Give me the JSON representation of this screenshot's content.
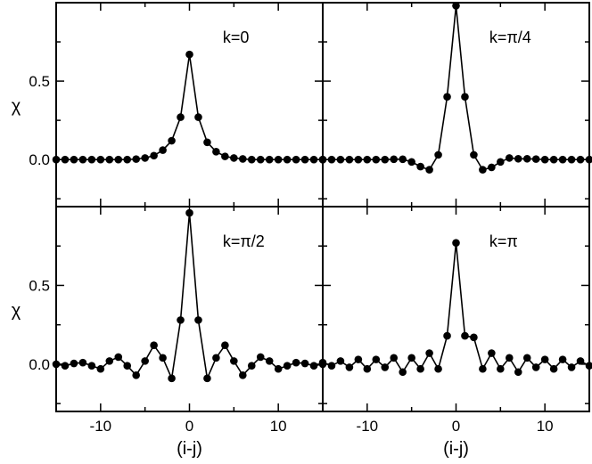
{
  "chart_data": {
    "type": "line",
    "layout": "2x2 panels with shared axes",
    "grid": false,
    "legend": "none",
    "xlabel": "(i-j)",
    "ylabel": "χ",
    "xlim": [
      -15,
      15
    ],
    "ylim": [
      -0.3,
      1.0
    ],
    "xticks": [
      -10,
      0,
      10
    ],
    "yticks": [
      0.0,
      0.5
    ],
    "xtick_labels": [
      "-10",
      "0",
      "10"
    ],
    "ytick_labels": [
      "0.0",
      "0.5"
    ],
    "marker": "filled-circle",
    "color": "#000000",
    "x": [
      -15,
      -14,
      -13,
      -12,
      -11,
      -10,
      -9,
      -8,
      -7,
      -6,
      -5,
      -4,
      -3,
      -2,
      -1,
      0,
      1,
      2,
      3,
      4,
      5,
      6,
      7,
      8,
      9,
      10,
      11,
      12,
      13,
      14,
      15
    ],
    "panels": [
      {
        "label": "k=0",
        "values": [
          0,
          0,
          0,
          0,
          0,
          0,
          0,
          0,
          0,
          0.003,
          0.01,
          0.025,
          0.06,
          0.12,
          0.27,
          0.67,
          0.27,
          0.11,
          0.05,
          0.02,
          0.01,
          0.004,
          0,
          0,
          0,
          0,
          0,
          0,
          0,
          0,
          0
        ]
      },
      {
        "label": "k=π/4",
        "values": [
          0,
          0,
          0,
          0,
          0,
          0,
          0,
          0,
          0.002,
          0.002,
          -0.015,
          -0.045,
          -0.065,
          0.03,
          0.4,
          0.98,
          0.4,
          0.03,
          -0.065,
          -0.05,
          -0.015,
          0.01,
          0.005,
          0.005,
          0.003,
          0,
          0,
          0,
          0,
          0,
          0
        ]
      },
      {
        "label": "k=π/2",
        "values": [
          0,
          -0.01,
          0.005,
          0.01,
          -0.01,
          -0.03,
          0.02,
          0.045,
          -0.01,
          -0.07,
          0.02,
          0.12,
          0.04,
          -0.09,
          0.28,
          0.96,
          0.28,
          -0.09,
          0.04,
          0.12,
          0.02,
          -0.07,
          -0.01,
          0.045,
          0.02,
          -0.03,
          -0.01,
          0.01,
          0.005,
          -0.01,
          0
        ]
      },
      {
        "label": "k=π",
        "values": [
          0.01,
          -0.01,
          0.02,
          -0.02,
          0.03,
          -0.03,
          0.03,
          -0.02,
          0.04,
          -0.05,
          0.04,
          -0.03,
          0.07,
          -0.03,
          0.18,
          0.77,
          0.18,
          0.17,
          -0.03,
          0.07,
          -0.03,
          0.04,
          -0.05,
          0.04,
          -0.02,
          0.03,
          -0.03,
          0.03,
          -0.02,
          0.02,
          -0.01
        ]
      }
    ]
  }
}
